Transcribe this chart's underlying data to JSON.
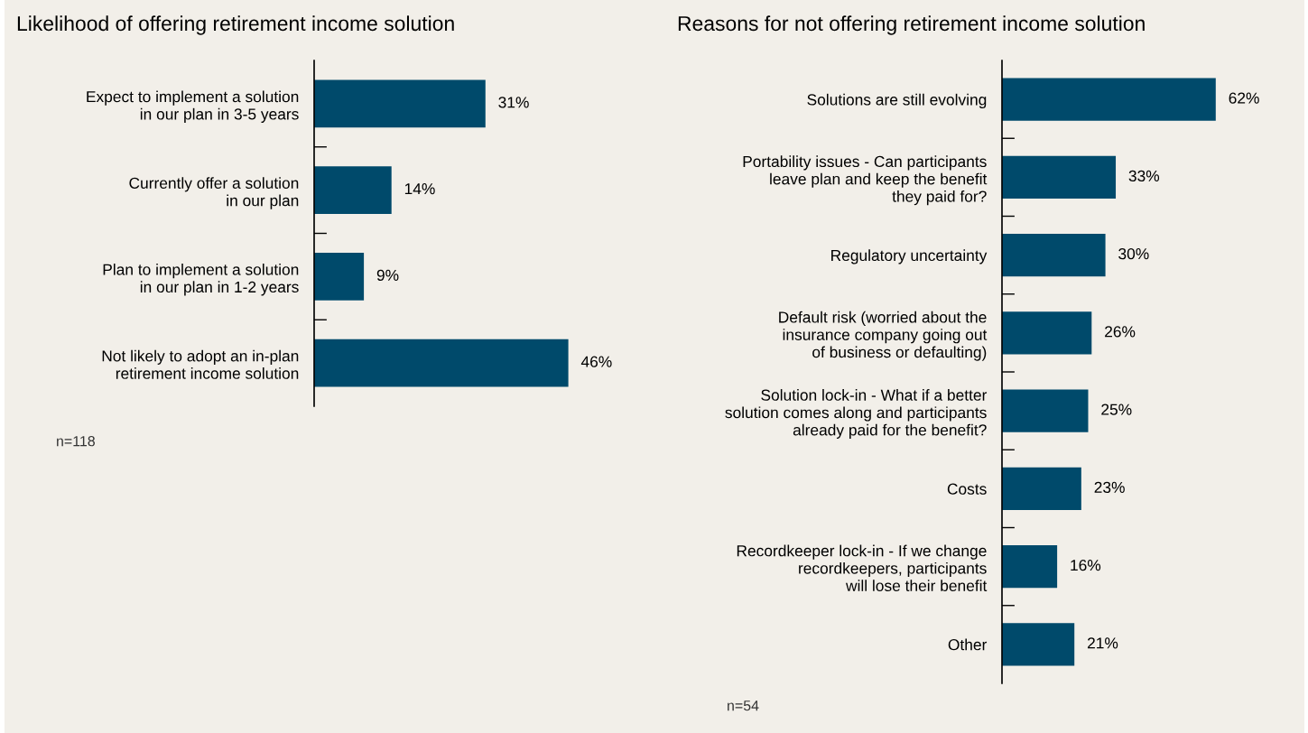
{
  "chart_data": [
    {
      "type": "bar",
      "orientation": "horizontal",
      "title": "Likelihood of offering retirement income solution",
      "categories": [
        "Expect to implement a solution\nin our plan in 3-5 years",
        "Currently offer a solution\nin our plan",
        "Plan to implement a solution\nin our plan in 1-2 years",
        "Not likely to adopt an in-plan\nretirement income solution"
      ],
      "values": [
        31,
        14,
        9,
        46
      ],
      "value_labels": [
        "31%",
        "14%",
        "9%",
        "46%"
      ],
      "color": "#004a6b",
      "grid": false,
      "legend": false,
      "tick_labels": "y",
      "annotations": [
        "n=118"
      ]
    },
    {
      "type": "bar",
      "orientation": "horizontal",
      "title": "Reasons for not offering retirement income solution",
      "categories": [
        "Solutions are still evolving",
        "Portability issues - Can participants\nleave plan and keep the benefit\nthey paid for?",
        "Regulatory uncertainty",
        "Default risk (worried about the\ninsurance company going out\nof business or defaulting)",
        "Solution lock-in - What if a better\nsolution comes along and participants\nalready paid for the benefit?",
        "Costs",
        "Recordkeeper lock-in - If we change\nrecordkeepers, participants\nwill lose their benefit",
        "Other"
      ],
      "values": [
        62,
        33,
        30,
        26,
        25,
        23,
        16,
        21
      ],
      "value_labels": [
        "62%",
        "33%",
        "30%",
        "26%",
        "25%",
        "23%",
        "16%",
        "21%"
      ],
      "color": "#004a6b",
      "grid": false,
      "legend": false,
      "tick_labels": "y",
      "annotations": [
        "n=54"
      ]
    }
  ]
}
